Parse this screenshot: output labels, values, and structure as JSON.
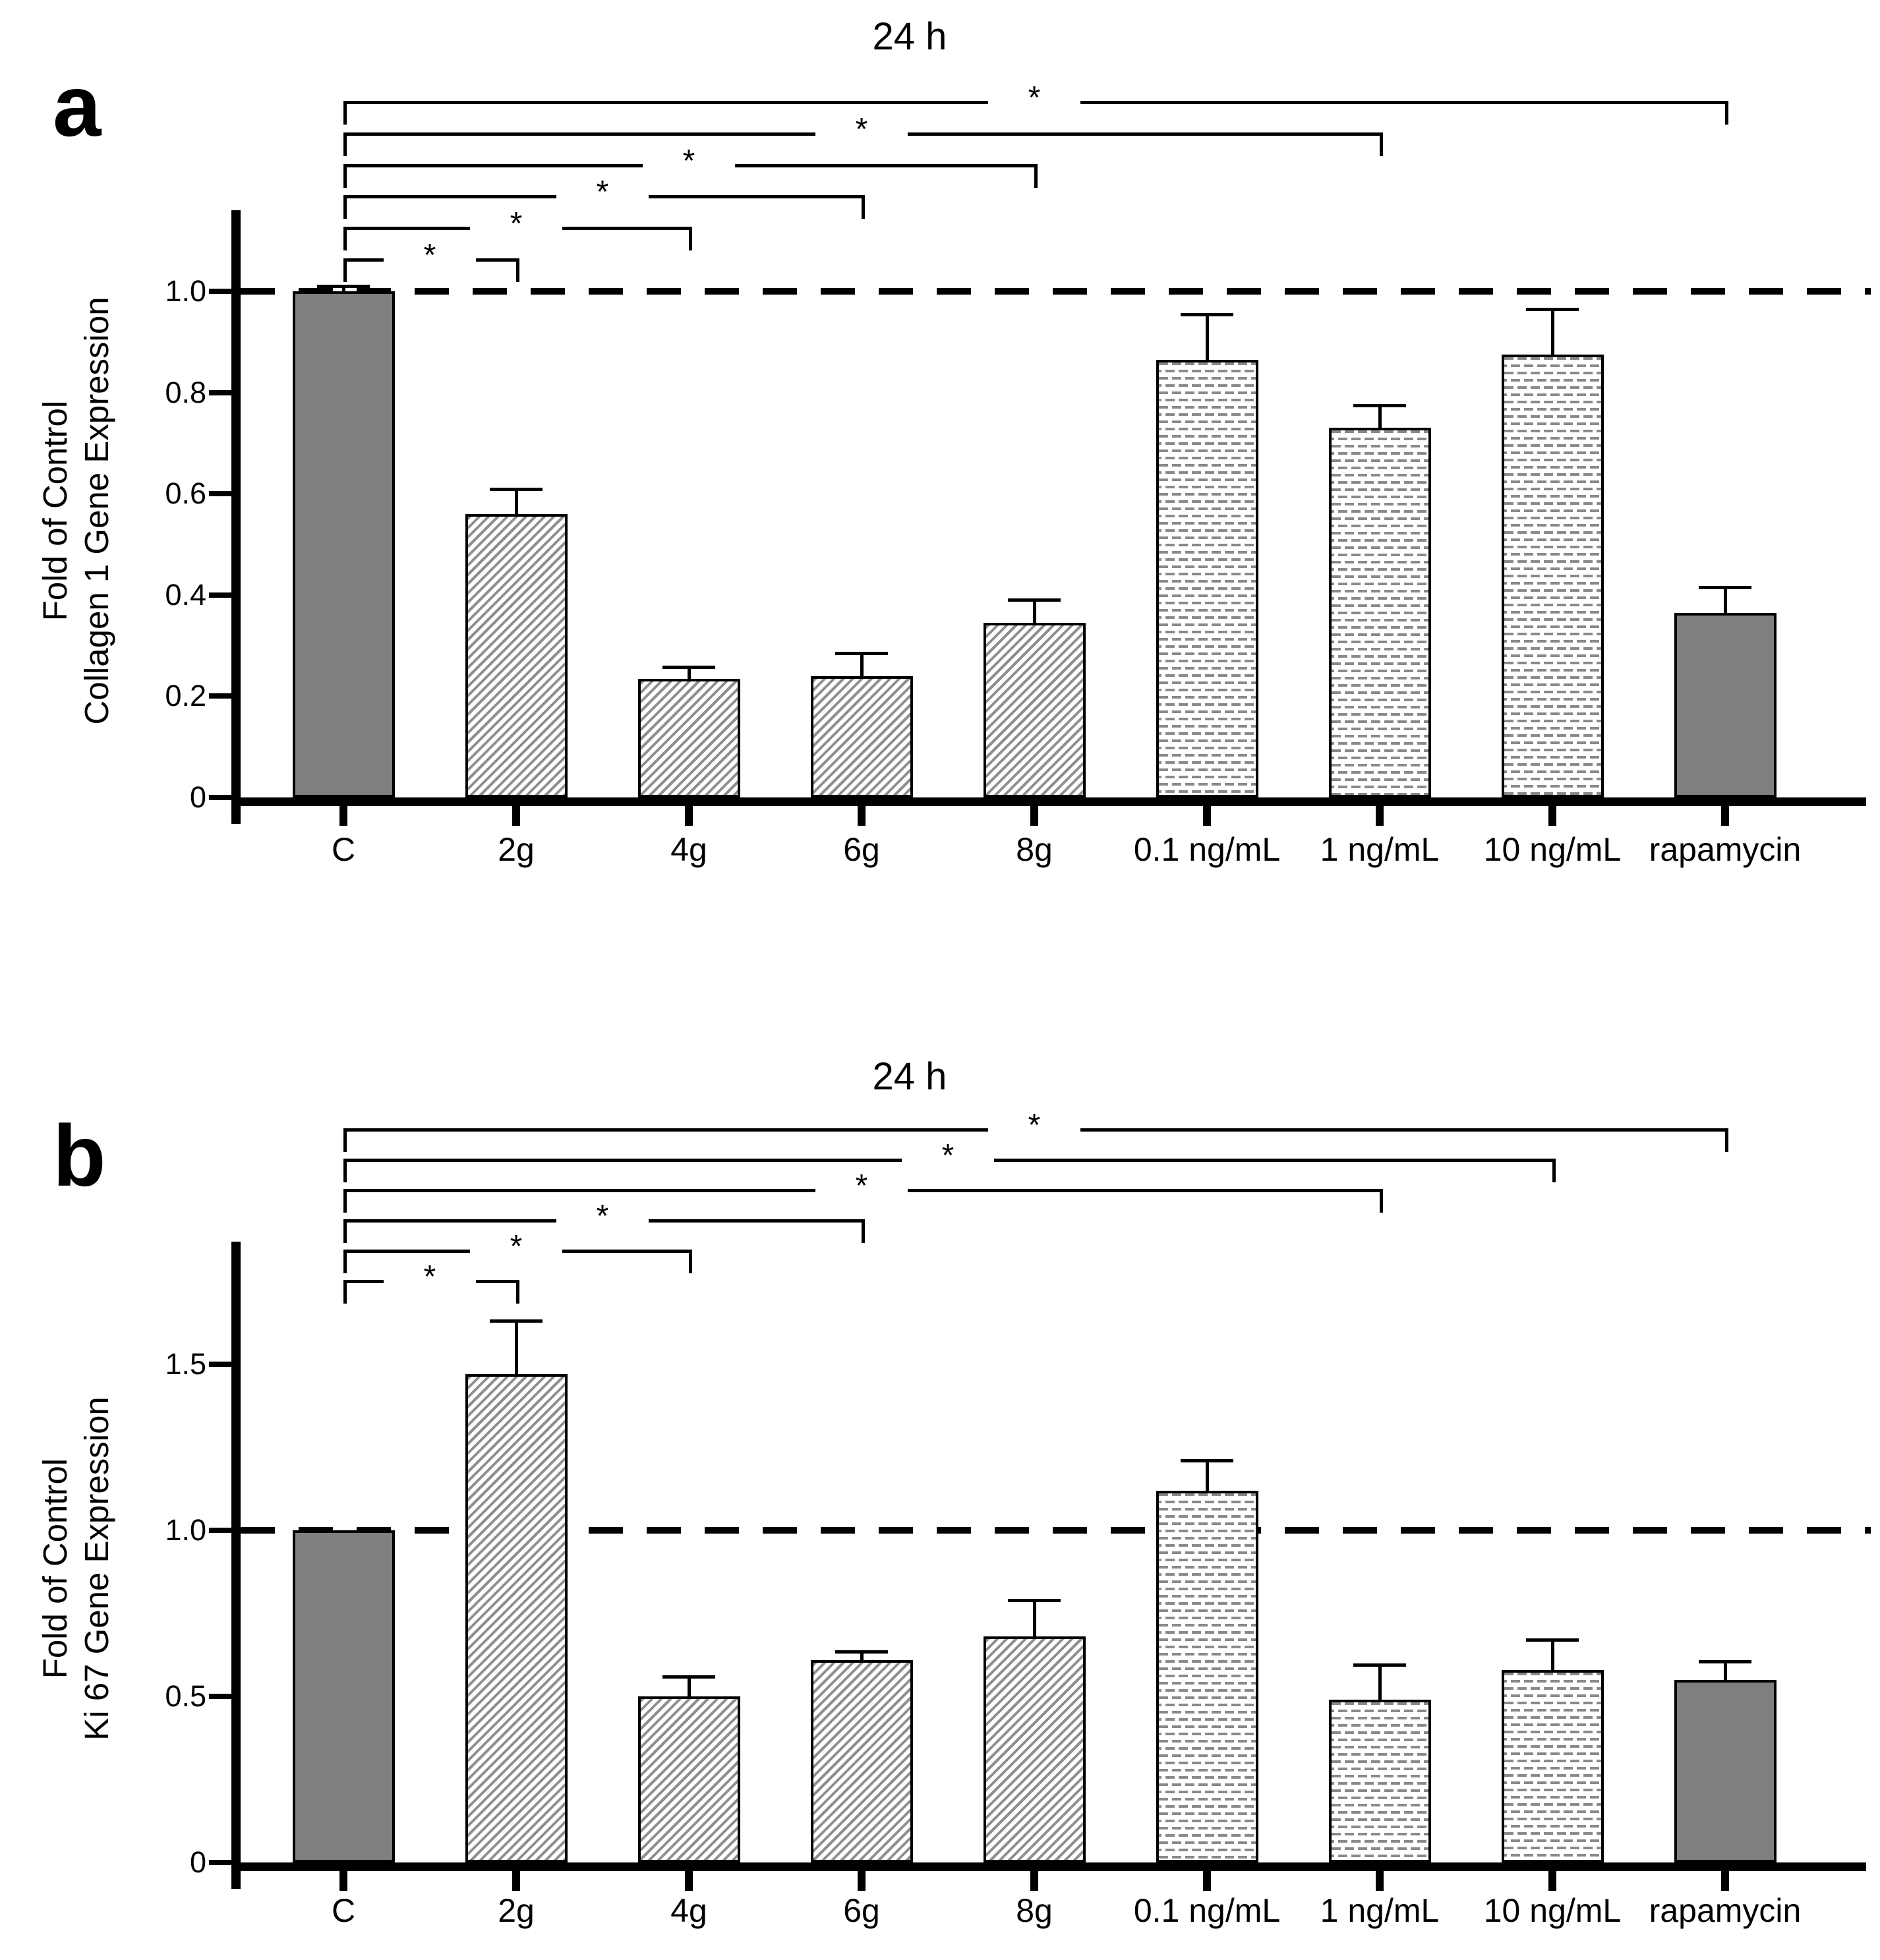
{
  "chart_data": [
    {
      "type": "bar",
      "panel_letter": "a",
      "title": "24 h",
      "ylabel_line1": "Fold of Control",
      "ylabel_line2": "Collagen 1 Gene Expression",
      "categories": [
        "C",
        "2g",
        "4g",
        "6g",
        "8g",
        "0.1 ng/mL",
        "1 ng/mL",
        "10 ng/mL",
        "rapamycin"
      ],
      "values": [
        1.0,
        0.56,
        0.235,
        0.24,
        0.345,
        0.865,
        0.73,
        0.875,
        0.365
      ],
      "errors_up": [
        0.01,
        0.05,
        0.023,
        0.045,
        0.045,
        0.09,
        0.045,
        0.09,
        0.05
      ],
      "bar_styles": [
        "solid",
        "hatch",
        "hatch",
        "hatch",
        "hatch",
        "dots",
        "dots",
        "dots",
        "solid"
      ],
      "yticks": [
        0,
        0.2,
        0.4,
        0.6,
        0.8,
        1.0
      ],
      "ytick_labels": [
        "0",
        "0.2",
        "0.4",
        "0.6",
        "0.8",
        "1.0"
      ],
      "ylim": [
        0,
        1.16
      ],
      "reference_line": 1.0,
      "grid": false,
      "legend": "none",
      "bar_colors": {
        "solid": "#7f7f7f",
        "hatch_line": "#8f8f8f",
        "dot": "#8a8a8a",
        "border": "#000000"
      },
      "significance": [
        {
          "from": "C",
          "to": "2g",
          "label": "*"
        },
        {
          "from": "C",
          "to": "4g",
          "label": "*"
        },
        {
          "from": "C",
          "to": "6g",
          "label": "*"
        },
        {
          "from": "C",
          "to": "8g",
          "label": "*"
        },
        {
          "from": "C",
          "to": "1 ng/mL",
          "label": "*"
        },
        {
          "from": "C",
          "to": "rapamycin",
          "label": "*"
        }
      ]
    },
    {
      "type": "bar",
      "panel_letter": "b",
      "title": "24 h",
      "ylabel_line1": "Fold of Control",
      "ylabel_line2": "Ki 67  Gene Expression",
      "categories": [
        "C",
        "2g",
        "4g",
        "6g",
        "8g",
        "0.1 ng/mL",
        "1 ng/mL",
        "10 ng/mL",
        "rapamycin"
      ],
      "values": [
        1.0,
        1.47,
        0.5,
        0.61,
        0.68,
        1.12,
        0.49,
        0.58,
        0.55
      ],
      "errors_up": [
        0,
        0.16,
        0.06,
        0.025,
        0.11,
        0.09,
        0.105,
        0.09,
        0.055
      ],
      "bar_styles": [
        "solid",
        "hatch",
        "hatch",
        "hatch",
        "hatch",
        "dots",
        "dots",
        "dots",
        "solid"
      ],
      "yticks": [
        0,
        0.5,
        1.0,
        1.5
      ],
      "ytick_labels": [
        "0",
        "0.5",
        "1.0",
        "1.5"
      ],
      "ylim": [
        0,
        1.87
      ],
      "reference_line": 1.0,
      "grid": false,
      "legend": "none",
      "bar_colors": {
        "solid": "#7f7f7f",
        "hatch_line": "#8f8f8f",
        "dot": "#8a8a8a",
        "border": "#000000"
      },
      "significance": [
        {
          "from": "C",
          "to": "2g",
          "label": "*"
        },
        {
          "from": "C",
          "to": "4g",
          "label": "*"
        },
        {
          "from": "C",
          "to": "6g",
          "label": "*"
        },
        {
          "from": "C",
          "to": "1 ng/mL",
          "label": "*"
        },
        {
          "from": "C",
          "to": "10 ng/mL",
          "label": "*"
        },
        {
          "from": "C",
          "to": "rapamycin",
          "label": "*"
        }
      ]
    }
  ]
}
